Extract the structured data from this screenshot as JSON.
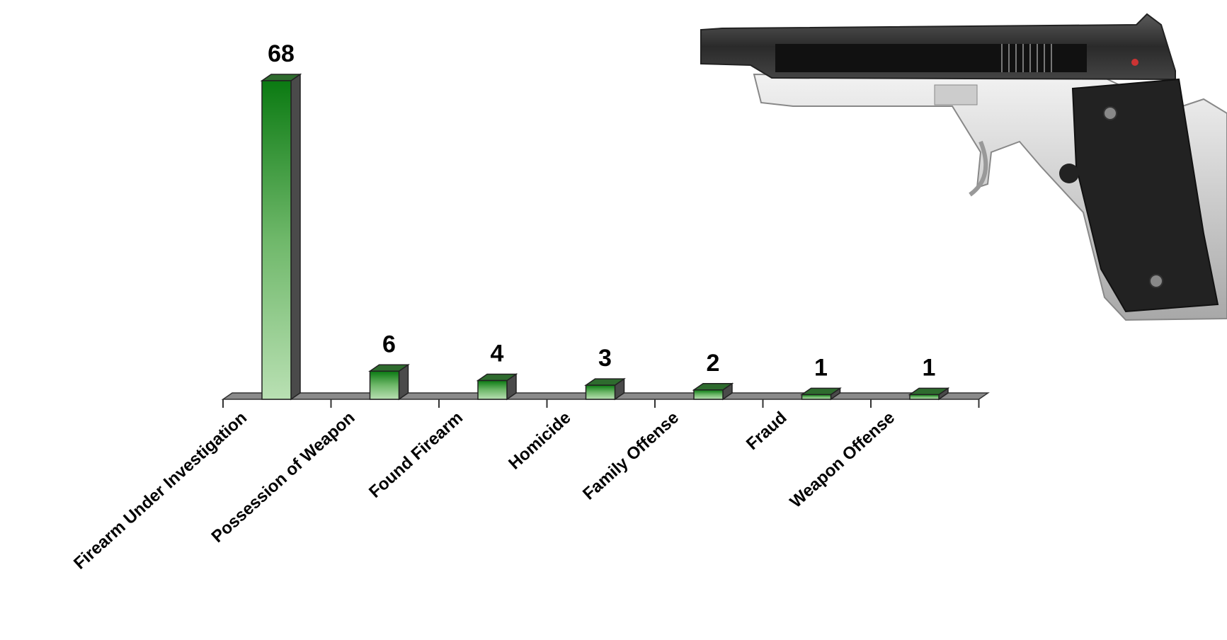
{
  "chart_data": {
    "type": "bar3d",
    "categories": [
      "Firearm Under Investigation",
      "Possession of Weapon",
      "Found Firearm",
      "Homicide",
      "Family Offense",
      "Fraud",
      "Weapon Offense"
    ],
    "values": [
      68,
      6,
      4,
      3,
      2,
      1,
      1
    ],
    "color": "#0b7a12"
  }
}
